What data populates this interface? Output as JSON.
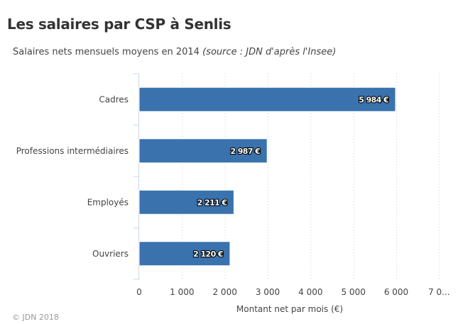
{
  "title": "Les salaires par CSP à Senlis",
  "subtitle": {
    "main": "Salaires nets mensuels moyens en 2014",
    "source": "(source : JDN d'après l'Insee)"
  },
  "credits": "© JDN 2018",
  "colors": {
    "bar": "#3a72ad",
    "grid": "#d0d0d0",
    "axis": "#ccd6eb",
    "label_text": "#ffffff",
    "label_outline": "#000000"
  },
  "chart_data": {
    "type": "bar",
    "orientation": "horizontal",
    "categories": [
      "Cadres",
      "Professions intermédiaires",
      "Employés",
      "Ouvriers"
    ],
    "values": [
      5984,
      2987,
      2211,
      2120
    ],
    "value_labels": [
      "5 984 €",
      "2 987 €",
      "2 211 €",
      "2 120 €"
    ],
    "xlabel": "Montant net par mois (€)",
    "ylabel": "",
    "xlim": [
      0,
      7000
    ],
    "x_ticks": [
      0,
      1000,
      2000,
      3000,
      4000,
      5000,
      6000,
      7000
    ],
    "x_tick_labels": [
      "0",
      "1 000",
      "2 000",
      "3 000",
      "4 000",
      "5 000",
      "6 000",
      "7 0..."
    ],
    "grid": true,
    "grid_style": "dotted",
    "legend": "none"
  }
}
